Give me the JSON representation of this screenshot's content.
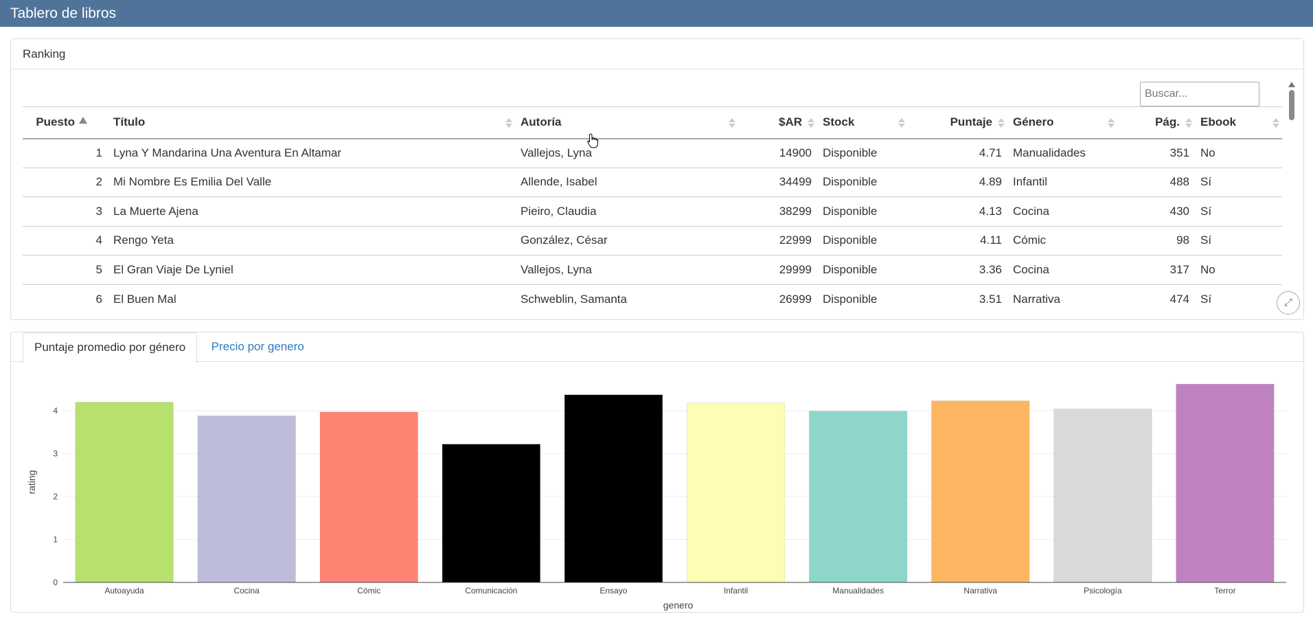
{
  "navbar": {
    "title": "Tablero de libros"
  },
  "ranking": {
    "title": "Ranking",
    "search_placeholder": "Buscar...",
    "columns": [
      "Puesto",
      "Título",
      "Autoría",
      "$AR",
      "Stock",
      "Puntaje",
      "Género",
      "Pág.",
      "Ebook"
    ],
    "rows": [
      [
        "1",
        "Lyna Y Mandarina Una Aventura En Altamar",
        "Vallejos, Lyna",
        "14900",
        "Disponible",
        "4.71",
        "Manualidades",
        "351",
        "No"
      ],
      [
        "2",
        "Mi Nombre Es Emilia Del Valle",
        "Allende, Isabel",
        "34499",
        "Disponible",
        "4.89",
        "Infantil",
        "488",
        "Sí"
      ],
      [
        "3",
        "La Muerte Ajena",
        "Pieiro, Claudia",
        "38299",
        "Disponible",
        "4.13",
        "Cocina",
        "430",
        "Sí"
      ],
      [
        "4",
        "Rengo Yeta",
        "González, César",
        "22999",
        "Disponible",
        "4.11",
        "Cómic",
        "98",
        "Sí"
      ],
      [
        "5",
        "El Gran Viaje De Lyniel",
        "Vallejos, Lyna",
        "29999",
        "Disponible",
        "3.36",
        "Cocina",
        "317",
        "No"
      ],
      [
        "6",
        "El Buen Mal",
        "Schweblin, Samanta",
        "26999",
        "Disponible",
        "3.51",
        "Narrativa",
        "474",
        "Sí"
      ]
    ]
  },
  "tabs": {
    "rating": "Puntaje promedio por género",
    "price": "Precio por genero"
  },
  "chart_data": {
    "type": "bar",
    "categories": [
      "Autoayuda",
      "Cocina",
      "Cómic",
      "Comunicación",
      "Ensayo",
      "Infantil",
      "Manualidades",
      "Narrativa",
      "Psicología",
      "Terror"
    ],
    "values": [
      4.2,
      3.88,
      3.97,
      3.22,
      4.37,
      4.18,
      3.99,
      4.23,
      4.04,
      4.62
    ],
    "colors": [
      "#b8e06f",
      "#bdbddb",
      "#fd8473",
      "#000000",
      "#000000",
      "#fdfdb3",
      "#8ed6cc",
      "#fdb562",
      "#d9d9d9",
      "#bf82c0"
    ],
    "xlabel": "genero",
    "ylabel": "rating",
    "ylim": [
      0,
      4.8
    ],
    "yticks": [
      0,
      1,
      2,
      3,
      4
    ],
    "grid": true,
    "legend": "none"
  }
}
